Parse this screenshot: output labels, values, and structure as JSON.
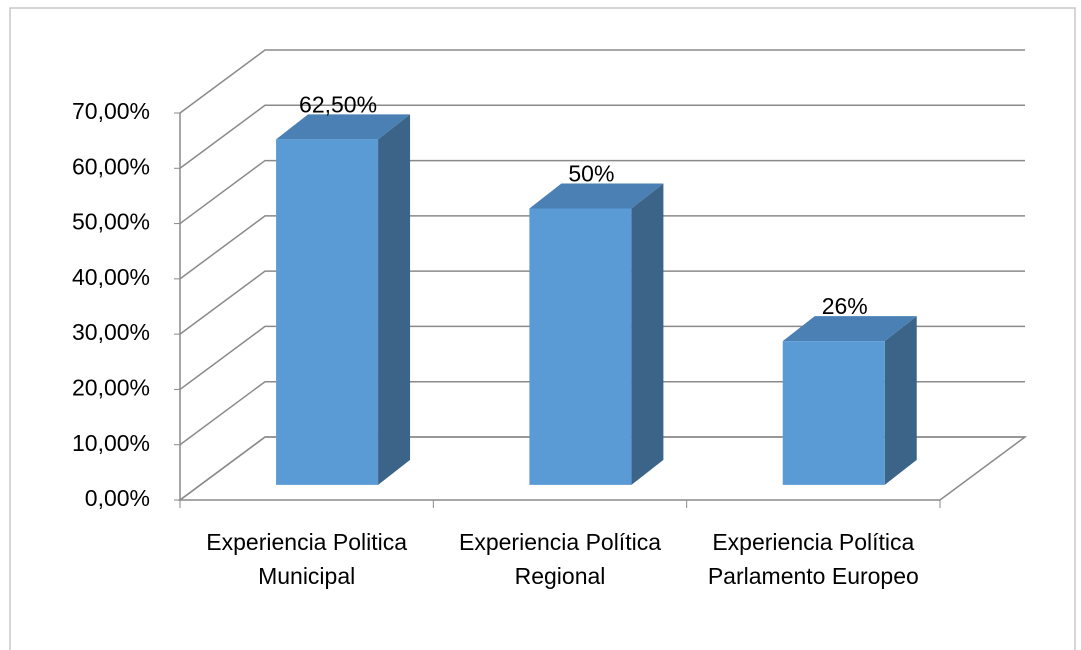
{
  "chart_data": {
    "type": "bar3d",
    "categories": [
      "Experiencia Politica Municipal",
      "Experiencia Política Regional",
      "Experiencia Política Parlamento Europeo"
    ],
    "values": [
      62.5,
      50,
      26
    ],
    "value_labels": [
      "62,50%",
      "50%",
      "26%"
    ],
    "color": "#5b9bd5",
    "ylim": [
      0,
      70
    ],
    "yticks": [
      {
        "value": 0,
        "label": "0,00%"
      },
      {
        "value": 10,
        "label": "10,00%"
      },
      {
        "value": 20,
        "label": "20,00%"
      },
      {
        "value": 30,
        "label": "30,00%"
      },
      {
        "value": 40,
        "label": "40,00%"
      },
      {
        "value": 50,
        "label": "50,00%"
      },
      {
        "value": 60,
        "label": "60,00%"
      },
      {
        "value": 70,
        "label": "70,00%"
      }
    ],
    "grid": true
  }
}
